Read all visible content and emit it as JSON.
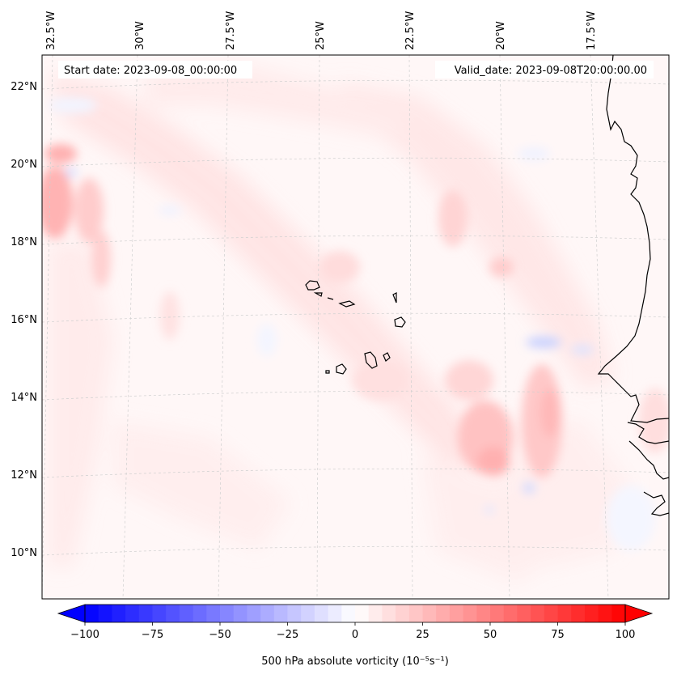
{
  "map": {
    "start_date_label": "Start date: 2023-09-08_00:00:00",
    "valid_date_label": "Valid_date: 2023-09-08T20:00:00.00",
    "longitude_ticks": [
      "32.5°W",
      "30°W",
      "27.5°W",
      "25°W",
      "22.5°W",
      "20°W",
      "17.5°W"
    ],
    "latitude_ticks": [
      "22°N",
      "20°N",
      "18°N",
      "16°N",
      "14°N",
      "12°N",
      "10°N"
    ],
    "gridlines": true,
    "coastline_color": "#000000"
  },
  "colorbar": {
    "label": "500 hPa absolute vorticity (10⁻⁵s⁻¹)",
    "ticks": [
      "−100",
      "−75",
      "−50",
      "−25",
      "0",
      "25",
      "50",
      "75",
      "100"
    ],
    "range": [
      -100,
      100
    ],
    "levels_step": 5,
    "colormap": "bwr",
    "low_color": "#0000ff",
    "mid_color": "#ffffff",
    "high_color": "#ff0000",
    "extend": "both"
  }
}
